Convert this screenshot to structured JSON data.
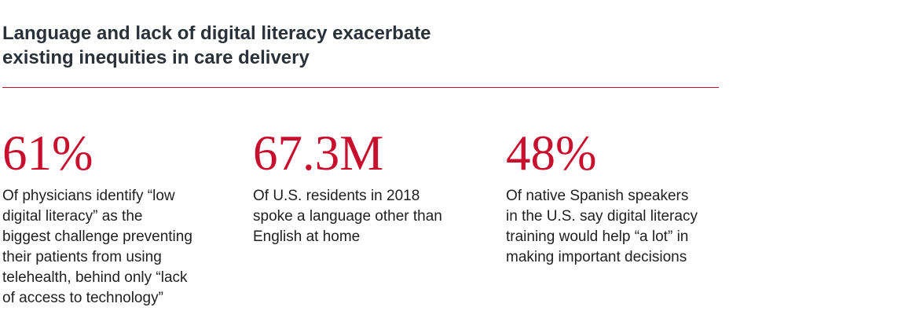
{
  "header": {
    "title_line1": "Language and lack of digital literacy exacerbate",
    "title_line2": "existing inequities in care delivery"
  },
  "accent_color": "#c8102e",
  "stats": [
    {
      "value": "61%",
      "lines": [
        "Of physicians identify “low",
        "digital literacy” as the",
        "biggest challenge preventing",
        "their patients from using",
        "telehealth, behind only “lack",
        "of access to technology”"
      ]
    },
    {
      "value": "67.3M",
      "lines": [
        "Of U.S. residents in 2018",
        "spoke a language other than",
        "English at home"
      ]
    },
    {
      "value": "48%",
      "lines": [
        "Of native Spanish speakers",
        "in the U.S. say digital literacy",
        "training would help “a lot” in",
        "making important decisions"
      ]
    }
  ]
}
